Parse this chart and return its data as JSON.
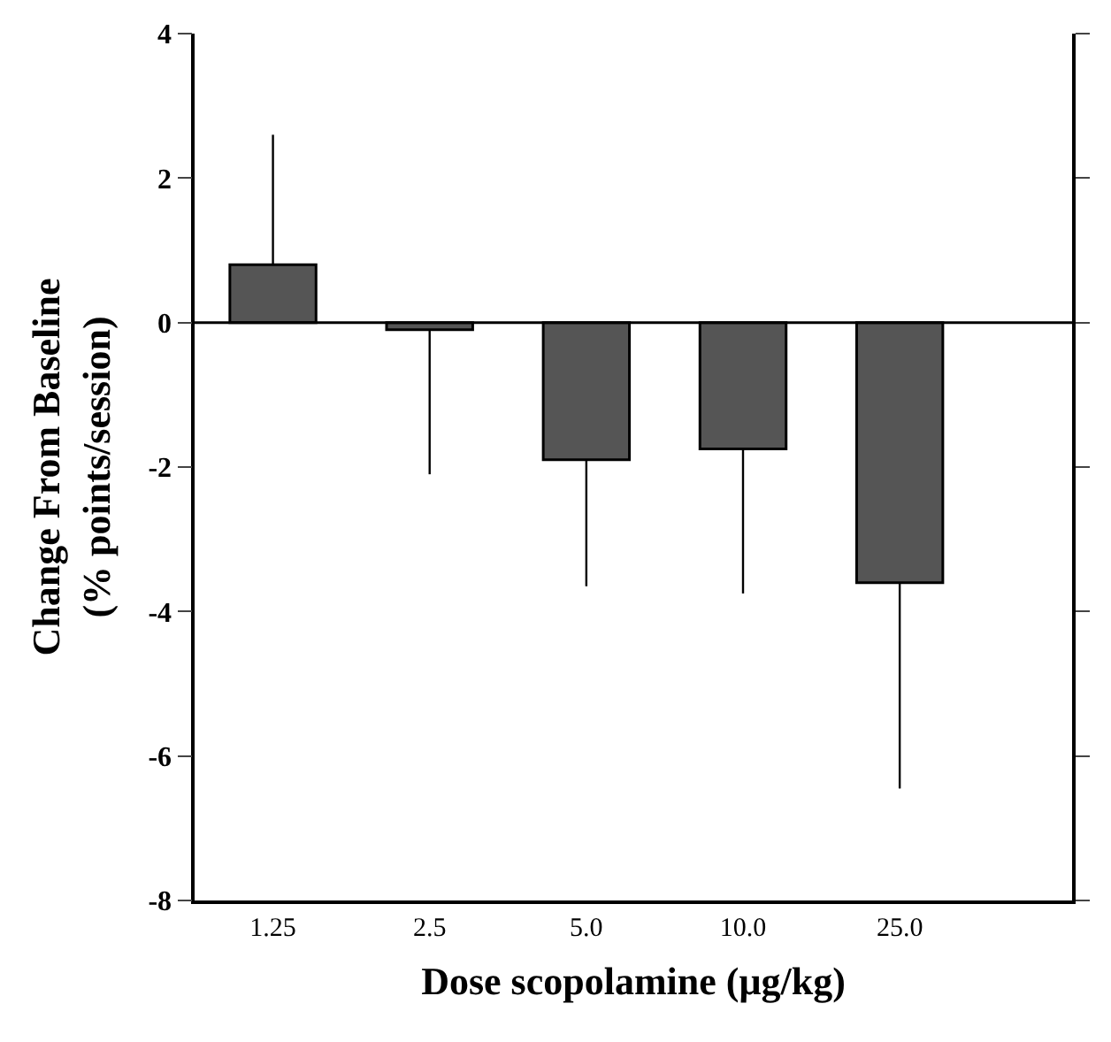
{
  "chart_data": {
    "type": "bar",
    "xlabel": "Dose scopolamine (μg/kg)",
    "ylabel": "Change From Baseline\n(% points/session)",
    "categories": [
      "1.25",
      "2.5",
      "5.0",
      "10.0",
      "25.0"
    ],
    "values": [
      0.8,
      -0.1,
      -1.9,
      -1.75,
      -3.6
    ],
    "errors": [
      [
        0.8,
        2.6
      ],
      [
        -2.1,
        -0.1
      ],
      [
        -3.65,
        -1.9
      ],
      [
        -3.75,
        -1.75
      ],
      [
        -6.45,
        -3.6
      ]
    ],
    "color": "#555555",
    "ref_lines": [
      {
        "axis": "y",
        "value": 0,
        "color": "#000000"
      }
    ],
    "ylim": [
      -8,
      4
    ],
    "yticks": [
      -8,
      -6,
      -4,
      -2,
      0,
      2,
      4
    ]
  }
}
